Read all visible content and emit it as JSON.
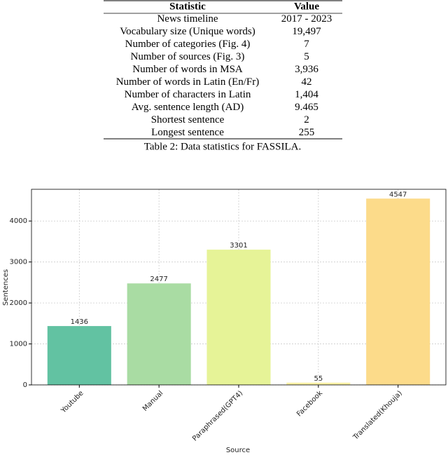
{
  "table": {
    "header": [
      "Statistic",
      "Value"
    ],
    "rows": [
      [
        "News timeline",
        "2017 - 2023"
      ],
      [
        "Vocabulary size (Unique words)",
        "19,497"
      ],
      [
        "Number of categories (Fig. 4)",
        "7"
      ],
      [
        "Number of sources (Fig. 3)",
        "5"
      ],
      [
        "Number of words in MSA",
        "3,936"
      ],
      [
        "Number of words in Latin (En/Fr)",
        "42"
      ],
      [
        "Number of characters in Latin",
        "1,404"
      ],
      [
        "Avg. sentence length (AD)",
        "9.465"
      ],
      [
        "Shortest sentence",
        "2"
      ],
      [
        "Longest sentence",
        "255"
      ]
    ],
    "caption": "Table 2: Data statistics for FASSILA."
  },
  "chart_data": {
    "type": "bar",
    "x_label": "Source",
    "y_label": "Sentences",
    "categories": [
      "Youtube",
      "Manual",
      "Paraphrased(GPT4)",
      "Facebook",
      "Translated(Khouja)"
    ],
    "values": [
      1436,
      2477,
      3301,
      55,
      4547
    ],
    "colors": [
      "#62c2a2",
      "#a9dca3",
      "#e6f397",
      "#f8f1a5",
      "#fcdb8a"
    ],
    "ylim": [
      0,
      4774
    ],
    "yticks": [
      0,
      1000,
      2000,
      3000,
      4000
    ],
    "grid": true
  }
}
